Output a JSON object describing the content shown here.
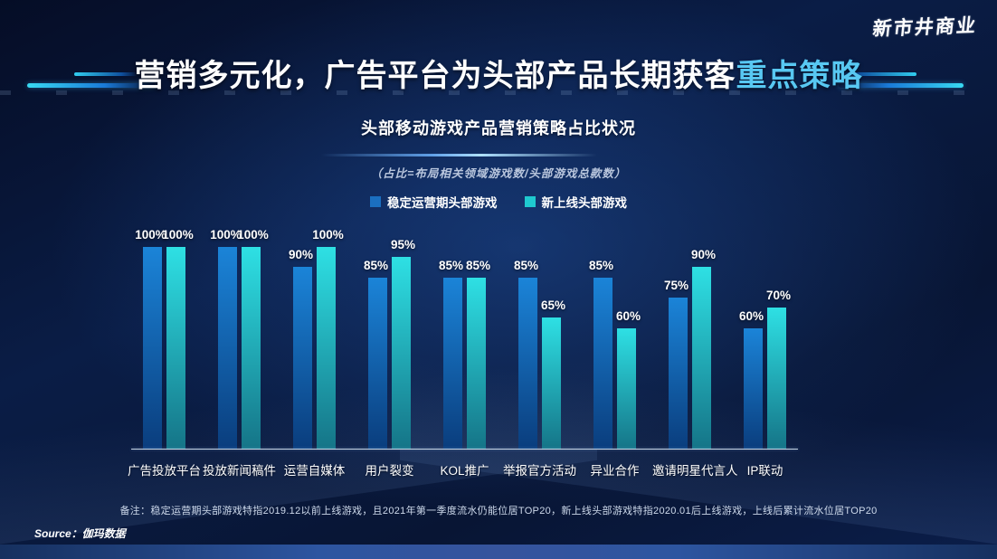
{
  "logo": {
    "text": "新市井商业"
  },
  "title": {
    "main": "营销多元化，广告平台为头部产品长期获客",
    "highlight": "重点策略"
  },
  "formula_note": "（占比=布局相关领域游戏数/头部游戏总款数）",
  "legend": [
    {
      "label": "稳定运营期头部游戏",
      "color": "#1b6fc0"
    },
    {
      "label": "新上线头部游戏",
      "color": "#1fc9cf"
    }
  ],
  "chart_data": {
    "type": "bar",
    "title": "头部移动游戏产品营销策略占比状况",
    "categories": [
      "广告投放平台",
      "投放新闻稿件",
      "运营自媒体",
      "用户裂变",
      "KOL推广",
      "举报官方活动",
      "异业合作",
      "邀请明星代言人",
      "IP联动"
    ],
    "series": [
      {
        "name": "稳定运营期头部游戏",
        "values": [
          100,
          100,
          90,
          85,
          85,
          85,
          85,
          75,
          60
        ],
        "color_top": "#1b84d8",
        "color_bottom": "#0a3d7d"
      },
      {
        "name": "新上线头部游戏",
        "values": [
          100,
          100,
          100,
          95,
          85,
          65,
          60,
          90,
          70
        ],
        "color_top": "#2ee0e4",
        "color_bottom": "#157487"
      }
    ],
    "value_suffix": "%",
    "ylim": [
      0,
      100
    ],
    "grid": false,
    "legend_position": "top"
  },
  "footnote": "备注：稳定运营期头部游戏特指2019.12以前上线游戏，且2021年第一季度流水仍能位居TOP20，新上线头部游戏特指2020.01后上线游戏，上线后累计流水位居TOP20",
  "source": "Source：伽玛数据",
  "colors": {
    "title_highlight": "#58c8f2",
    "background_dark": "#081534",
    "bottom_band": "#2d55a0",
    "axis_line": "#d7e4f2"
  }
}
